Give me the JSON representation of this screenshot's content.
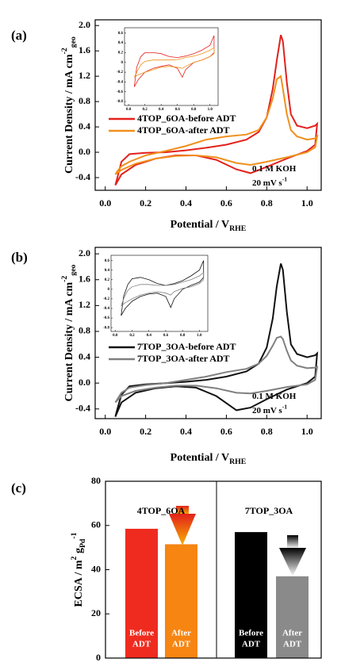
{
  "chart_data": [
    {
      "type": "line",
      "panel_label": "(a)",
      "xlabel": [
        {
          "text": "Potential / V"
        },
        {
          "sub": "RHE"
        }
      ],
      "ylabel": [
        {
          "text": "Current Density / mA cm"
        },
        {
          "sup": "-2"
        },
        {
          "sub": "geo"
        }
      ],
      "xlim": [
        -0.05,
        1.07
      ],
      "ylim": [
        -0.6,
        2.09
      ],
      "xticks": [
        {
          "value": 0,
          "label": "0.0"
        },
        0.2,
        0.4,
        0.6,
        0.8,
        {
          "value": 1,
          "label": "1.0"
        }
      ],
      "yticks": [
        -0.4,
        {
          "value": 0,
          "label": "0.0"
        },
        0.4,
        0.8,
        1.2,
        1.6,
        {
          "value": 2,
          "label": "2.0"
        }
      ],
      "annotations": [
        [
          {
            "text": "0.1 M KOH"
          }
        ],
        [
          {
            "text": "20 mV s"
          },
          {
            "sup": "-1"
          }
        ]
      ],
      "series": [
        {
          "name": "4TOP_6OA-before ADT",
          "color": "#e3211c",
          "x": [
            0.05,
            0.06,
            0.08,
            0.12,
            0.2,
            0.3,
            0.4,
            0.5,
            0.6,
            0.7,
            0.76,
            0.8,
            0.83,
            0.85,
            0.87,
            0.88,
            0.9,
            0.92,
            0.95,
            1.0,
            1.04,
            1.05,
            1.04,
            1.0,
            0.9,
            0.8,
            0.72,
            0.65,
            0.55,
            0.45,
            0.35,
            0.25,
            0.15,
            0.08,
            0.05
          ],
          "values": [
            -0.52,
            -0.4,
            -0.15,
            -0.03,
            -0.01,
            0.0,
            0.03,
            0.07,
            0.12,
            0.2,
            0.32,
            0.55,
            1.0,
            1.45,
            1.85,
            1.75,
            1.1,
            0.6,
            0.42,
            0.38,
            0.42,
            0.45,
            0.12,
            0.02,
            -0.1,
            -0.23,
            -0.33,
            -0.27,
            -0.12,
            -0.05,
            -0.05,
            -0.1,
            -0.2,
            -0.35,
            -0.52
          ]
        },
        {
          "name": "4TOP_6OA-after ADT",
          "color": "#f0901c",
          "x": [
            0.05,
            0.06,
            0.08,
            0.12,
            0.2,
            0.3,
            0.4,
            0.5,
            0.6,
            0.7,
            0.76,
            0.8,
            0.83,
            0.85,
            0.87,
            0.88,
            0.9,
            0.92,
            0.95,
            1.0,
            1.04,
            1.05,
            1.04,
            1.0,
            0.9,
            0.8,
            0.72,
            0.65,
            0.55,
            0.45,
            0.35,
            0.25,
            0.15,
            0.08,
            0.05
          ],
          "values": [
            -0.35,
            -0.3,
            -0.22,
            -0.15,
            -0.05,
            0.02,
            0.1,
            0.2,
            0.25,
            0.28,
            0.35,
            0.55,
            0.85,
            1.15,
            1.2,
            1.0,
            0.6,
            0.35,
            0.25,
            0.2,
            0.22,
            0.25,
            0.08,
            0.0,
            -0.08,
            -0.15,
            -0.2,
            -0.17,
            -0.08,
            -0.05,
            -0.06,
            -0.1,
            -0.18,
            -0.28,
            -0.35
          ]
        }
      ]
    },
    {
      "type": "line",
      "xlim": [
        -0.05,
        1.1
      ],
      "ylim": [
        -0.88,
        0.71
      ],
      "xticks": [
        {
          "value": 0,
          "label": "0.0"
        },
        0.2,
        0.4,
        0.6,
        0.8,
        {
          "value": 1,
          "label": "1.0"
        }
      ],
      "yticks": [
        -0.8,
        -0.6,
        -0.4,
        -0.2,
        0,
        0.2,
        0.4,
        0.6
      ],
      "series": [
        {
          "color": "#e3211c",
          "x": [
            0.07,
            0.1,
            0.15,
            0.2,
            0.3,
            0.4,
            0.5,
            0.6,
            0.7,
            0.8,
            0.9,
            1.0,
            1.05,
            1.05,
            1.0,
            0.9,
            0.8,
            0.7,
            0.66,
            0.6,
            0.5,
            0.4,
            0.3,
            0.2,
            0.12,
            0.07
          ],
          "values": [
            -0.5,
            -0.1,
            0.12,
            0.2,
            0.2,
            0.18,
            0.12,
            0.1,
            0.13,
            0.18,
            0.25,
            0.35,
            0.55,
            0.2,
            0.12,
            0.05,
            0.0,
            -0.15,
            -0.3,
            -0.12,
            -0.05,
            -0.08,
            -0.12,
            -0.2,
            -0.35,
            -0.5
          ]
        },
        {
          "color": "#f0901c",
          "x": [
            0.07,
            0.1,
            0.15,
            0.2,
            0.3,
            0.4,
            0.5,
            0.6,
            0.7,
            0.8,
            0.9,
            1.0,
            1.05,
            1.05,
            1.0,
            0.9,
            0.8,
            0.7,
            0.66,
            0.6,
            0.5,
            0.4,
            0.3,
            0.2,
            0.12,
            0.07
          ],
          "values": [
            -0.3,
            -0.2,
            -0.05,
            0.02,
            0.05,
            0.05,
            0.05,
            0.06,
            0.1,
            0.13,
            0.18,
            0.25,
            0.3,
            0.18,
            0.12,
            0.05,
            0.0,
            -0.08,
            -0.12,
            -0.1,
            -0.08,
            -0.1,
            -0.15,
            -0.2,
            -0.25,
            -0.3
          ]
        }
      ]
    },
    {
      "type": "line",
      "panel_label": "(b)",
      "xlabel": [
        {
          "text": "Potential / V"
        },
        {
          "sub": "RHE"
        }
      ],
      "ylabel": [
        {
          "text": "Current Density / mA cm"
        },
        {
          "sup": "-2"
        },
        {
          "sub": "geo"
        }
      ],
      "xlim": [
        -0.05,
        1.07
      ],
      "ylim": [
        -0.55,
        2.1
      ],
      "xticks": [
        {
          "value": 0,
          "label": "0.0"
        },
        0.2,
        0.4,
        0.6,
        0.8,
        {
          "value": 1,
          "label": "1.0"
        }
      ],
      "yticks": [
        -0.4,
        {
          "value": 0,
          "label": "0.0"
        },
        0.4,
        0.8,
        1.2,
        1.6,
        {
          "value": 2,
          "label": "2.0"
        }
      ],
      "annotations": [
        [
          {
            "text": "0.1 M KOH"
          }
        ],
        [
          {
            "text": "20 mV s"
          },
          {
            "sup": "-1"
          }
        ]
      ],
      "series": [
        {
          "name": "7TOP_3OA-before ADT",
          "color": "#111111",
          "x": [
            0.05,
            0.06,
            0.08,
            0.12,
            0.2,
            0.3,
            0.4,
            0.5,
            0.6,
            0.7,
            0.76,
            0.8,
            0.83,
            0.85,
            0.87,
            0.88,
            0.9,
            0.92,
            0.95,
            1.0,
            1.04,
            1.05,
            1.04,
            1.0,
            0.9,
            0.8,
            0.72,
            0.65,
            0.55,
            0.45,
            0.35,
            0.25,
            0.15,
            0.08,
            0.05
          ],
          "values": [
            -0.52,
            -0.4,
            -0.18,
            -0.05,
            -0.02,
            0.0,
            0.02,
            0.05,
            0.1,
            0.18,
            0.3,
            0.55,
            1.0,
            1.5,
            1.85,
            1.75,
            1.1,
            0.6,
            0.45,
            0.4,
            0.43,
            0.46,
            0.1,
            0.0,
            -0.1,
            -0.25,
            -0.38,
            -0.42,
            -0.2,
            -0.07,
            -0.05,
            -0.08,
            -0.15,
            -0.3,
            -0.52
          ]
        },
        {
          "name": "7TOP_3OA-after ADT",
          "color": "#808080",
          "x": [
            0.05,
            0.06,
            0.08,
            0.12,
            0.2,
            0.3,
            0.4,
            0.5,
            0.6,
            0.7,
            0.76,
            0.8,
            0.83,
            0.85,
            0.87,
            0.88,
            0.9,
            0.92,
            0.95,
            1.0,
            1.04,
            1.05,
            1.04,
            1.0,
            0.9,
            0.8,
            0.72,
            0.65,
            0.55,
            0.45,
            0.35,
            0.25,
            0.15,
            0.08,
            0.05
          ],
          "values": [
            -0.3,
            -0.25,
            -0.15,
            -0.07,
            -0.03,
            0.0,
            0.05,
            0.1,
            0.17,
            0.22,
            0.3,
            0.42,
            0.58,
            0.7,
            0.72,
            0.68,
            0.5,
            0.35,
            0.27,
            0.23,
            0.24,
            0.25,
            0.05,
            -0.02,
            -0.06,
            -0.12,
            -0.16,
            -0.15,
            -0.08,
            -0.04,
            -0.04,
            -0.07,
            -0.12,
            -0.2,
            -0.3
          ]
        }
      ]
    },
    {
      "type": "line",
      "xlim": [
        -0.05,
        1.1
      ],
      "ylim": [
        -0.88,
        0.71
      ],
      "xticks": [
        {
          "value": 0,
          "label": "0.0"
        },
        0.2,
        0.4,
        0.6,
        0.8,
        {
          "value": 1,
          "label": "1.0"
        }
      ],
      "yticks": [
        -0.8,
        -0.6,
        -0.4,
        -0.2,
        0,
        0.2,
        0.4,
        0.6
      ],
      "series": [
        {
          "color": "#111111",
          "x": [
            0.07,
            0.1,
            0.15,
            0.2,
            0.3,
            0.4,
            0.5,
            0.6,
            0.7,
            0.8,
            0.9,
            1.0,
            1.05,
            1.05,
            1.0,
            0.9,
            0.8,
            0.7,
            0.66,
            0.6,
            0.5,
            0.4,
            0.3,
            0.2,
            0.12,
            0.07
          ],
          "values": [
            -0.55,
            -0.15,
            0.1,
            0.22,
            0.25,
            0.2,
            0.12,
            0.08,
            0.12,
            0.18,
            0.28,
            0.4,
            0.6,
            0.25,
            0.15,
            0.08,
            0.0,
            -0.2,
            -0.38,
            -0.15,
            -0.08,
            -0.1,
            -0.15,
            -0.25,
            -0.4,
            -0.55
          ]
        },
        {
          "color": "#808080",
          "x": [
            0.07,
            0.1,
            0.15,
            0.2,
            0.3,
            0.4,
            0.5,
            0.6,
            0.7,
            0.8,
            0.9,
            1.0,
            1.05,
            1.05,
            1.0,
            0.9,
            0.8,
            0.7,
            0.66,
            0.6,
            0.5,
            0.4,
            0.3,
            0.2,
            0.12,
            0.07
          ],
          "values": [
            -0.35,
            -0.2,
            -0.02,
            0.05,
            0.1,
            0.1,
            0.08,
            0.08,
            0.1,
            0.15,
            0.2,
            0.28,
            0.35,
            0.2,
            0.12,
            0.05,
            0.02,
            -0.05,
            -0.12,
            -0.08,
            -0.05,
            -0.08,
            -0.12,
            -0.2,
            -0.28,
            -0.35
          ]
        }
      ]
    },
    {
      "type": "bar",
      "panel_label": "(c)",
      "ylabel": [
        {
          "text": "ECSA / m"
        },
        {
          "sup": "2"
        },
        {
          "text": " g"
        },
        {
          "sub": "Pd"
        },
        {
          "sup": "-1"
        }
      ],
      "groups": [
        "4TOP_6OA",
        "7TOP_3OA"
      ],
      "categories": [
        [
          "Before",
          "ADT"
        ],
        [
          "After",
          "ADT"
        ],
        [
          "Before",
          "ADT"
        ],
        [
          "After",
          "ADT"
        ]
      ],
      "values": [
        58.5,
        51.5,
        57,
        37
      ],
      "colors": [
        "#ef2b1f",
        "#f68512",
        "#000000",
        "#8a8a8a"
      ],
      "ylim": [
        0,
        80
      ],
      "yticks": [
        0,
        20,
        40,
        60,
        80
      ]
    }
  ]
}
